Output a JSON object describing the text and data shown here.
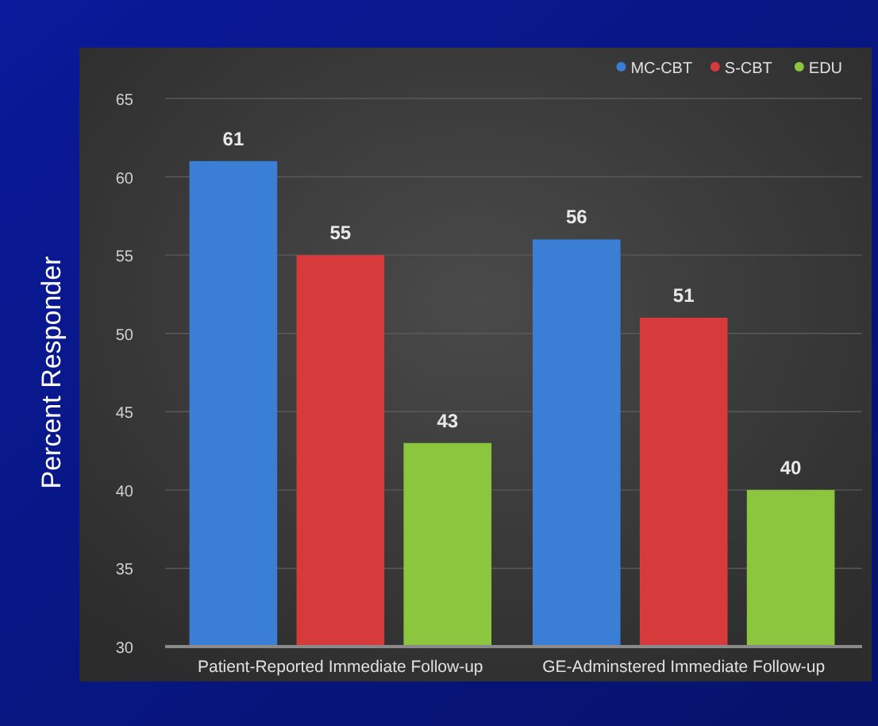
{
  "chart_data": {
    "type": "bar",
    "ylabel": "Percent Responder",
    "categories": [
      "Patient-Reported Immediate Follow-up",
      "GE-Adminstered Immediate Follow-up"
    ],
    "series": [
      {
        "name": "MC-CBT",
        "color": "#3a7fd5",
        "values": [
          61,
          56
        ]
      },
      {
        "name": "S-CBT",
        "color": "#d63a3a",
        "values": [
          55,
          51
        ]
      },
      {
        "name": "EDU",
        "color": "#8cc63f",
        "values": [
          43,
          40
        ]
      }
    ],
    "ylim": [
      30,
      65
    ],
    "yticks": [
      30,
      35,
      40,
      45,
      50,
      55,
      60,
      65
    ],
    "grid": "y",
    "legend": "top right",
    "data_labels": true
  }
}
